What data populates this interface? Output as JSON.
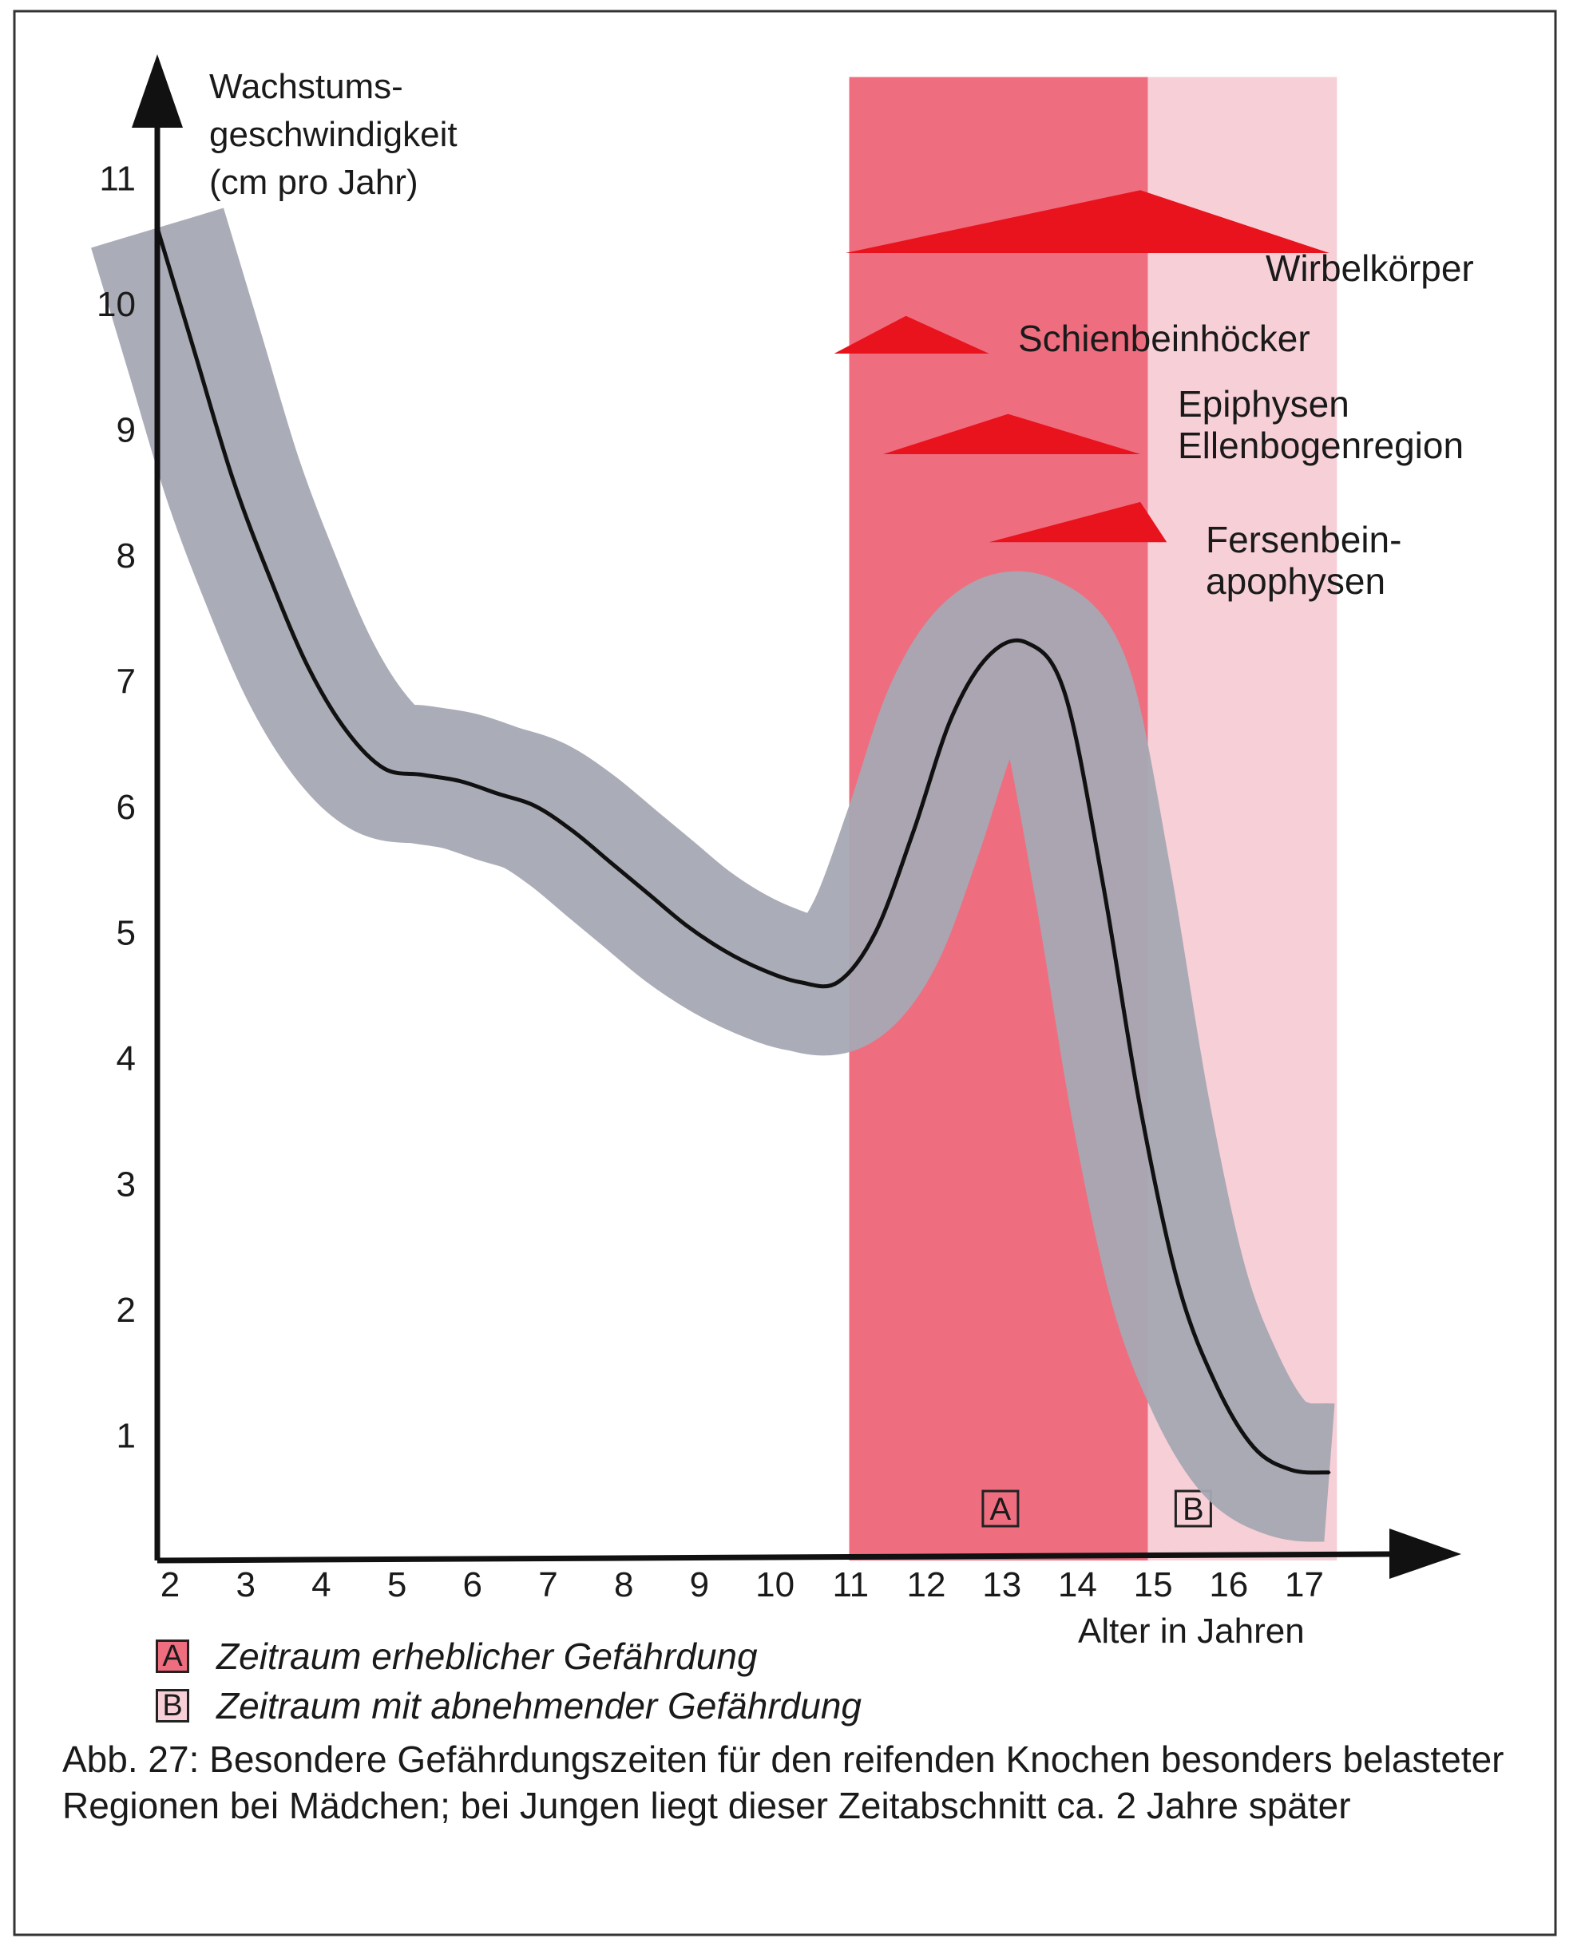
{
  "chart_data": {
    "type": "line",
    "title": "Abb. 27",
    "ylabel": "Wachstums-\ngeschwindigkeit\n(cm pro Jahr)",
    "xlabel": "Alter in Jahren",
    "xlim": [
      2,
      17.6
    ],
    "ylim": [
      0,
      11.8
    ],
    "x_ticks": [
      "2",
      "3",
      "4",
      "5",
      "6",
      "7",
      "8",
      "9",
      "10",
      "11",
      "12",
      "13",
      "14",
      "15",
      "16",
      "17"
    ],
    "y_ticks": [
      "1",
      "2",
      "3",
      "4",
      "5",
      "6",
      "7",
      "8",
      "9",
      "10",
      "11"
    ],
    "series": [
      {
        "name": "Wachstumsgeschwindigkeit",
        "x": [
          2.0,
          2.5,
          3.0,
          3.5,
          4.0,
          4.5,
          5.0,
          5.5,
          6.0,
          6.5,
          7.0,
          7.5,
          8.0,
          8.5,
          9.0,
          9.5,
          10.0,
          10.5,
          11.0,
          11.5,
          12.0,
          12.5,
          13.0,
          13.5,
          14.0,
          14.5,
          15.0,
          15.5,
          16.0,
          16.5,
          17.0,
          17.5
        ],
        "values": [
          10.6,
          9.6,
          8.6,
          7.8,
          7.1,
          6.6,
          6.3,
          6.25,
          6.2,
          6.1,
          6.0,
          5.8,
          5.55,
          5.3,
          5.05,
          4.85,
          4.7,
          4.6,
          4.6,
          5.0,
          5.8,
          6.7,
          7.2,
          7.3,
          6.9,
          5.4,
          3.6,
          2.2,
          1.4,
          0.9,
          0.72,
          0.7
        ]
      }
    ],
    "band_half_width": 0.55,
    "periods": [
      {
        "key": "A",
        "from": 11.15,
        "to": 15.1,
        "color": "#ee6e80"
      },
      {
        "key": "B",
        "from": 15.1,
        "to": 17.6,
        "color": "#f7cfd7"
      }
    ],
    "regions": [
      {
        "label_lines": [
          "Wirbelkörper"
        ],
        "x_start": 11.1,
        "x_peak": 15.0,
        "x_end": 17.5,
        "y": 10.4,
        "height": 0.5
      },
      {
        "label_lines": [
          "Schienbeinhöcker"
        ],
        "x_start": 10.95,
        "x_peak": 11.9,
        "x_end": 13.0,
        "y": 9.6,
        "height": 0.3
      },
      {
        "label_lines": [
          "Epiphysen",
          "Ellenbogenregion"
        ],
        "x_start": 11.6,
        "x_peak": 13.25,
        "x_end": 15.0,
        "y": 8.8,
        "height": 0.32
      },
      {
        "label_lines": [
          "Fersenbein-",
          "apophysen"
        ],
        "x_start": 13.0,
        "x_peak": 15.0,
        "x_end": 15.35,
        "y": 8.1,
        "height": 0.32
      }
    ],
    "colors": {
      "band": "#a5a8b3",
      "line": "#111111",
      "arrow": "#e8131d",
      "axis": "#111111"
    }
  },
  "legend": [
    {
      "key": "A",
      "text": "Zeitraum erheblicher Gefährdung",
      "color": "#ee6e80"
    },
    {
      "key": "B",
      "text": "Zeitraum mit abnehmender Gefährdung",
      "color": "#f7cfd7"
    }
  ],
  "caption": "Abb. 27: Besondere Gefährdungszeiten für den reifenden Knochen besonders belasteter Regionen bei Mädchen; bei Jungen liegt dieser Zeitabschnitt ca. 2 Jahre später"
}
